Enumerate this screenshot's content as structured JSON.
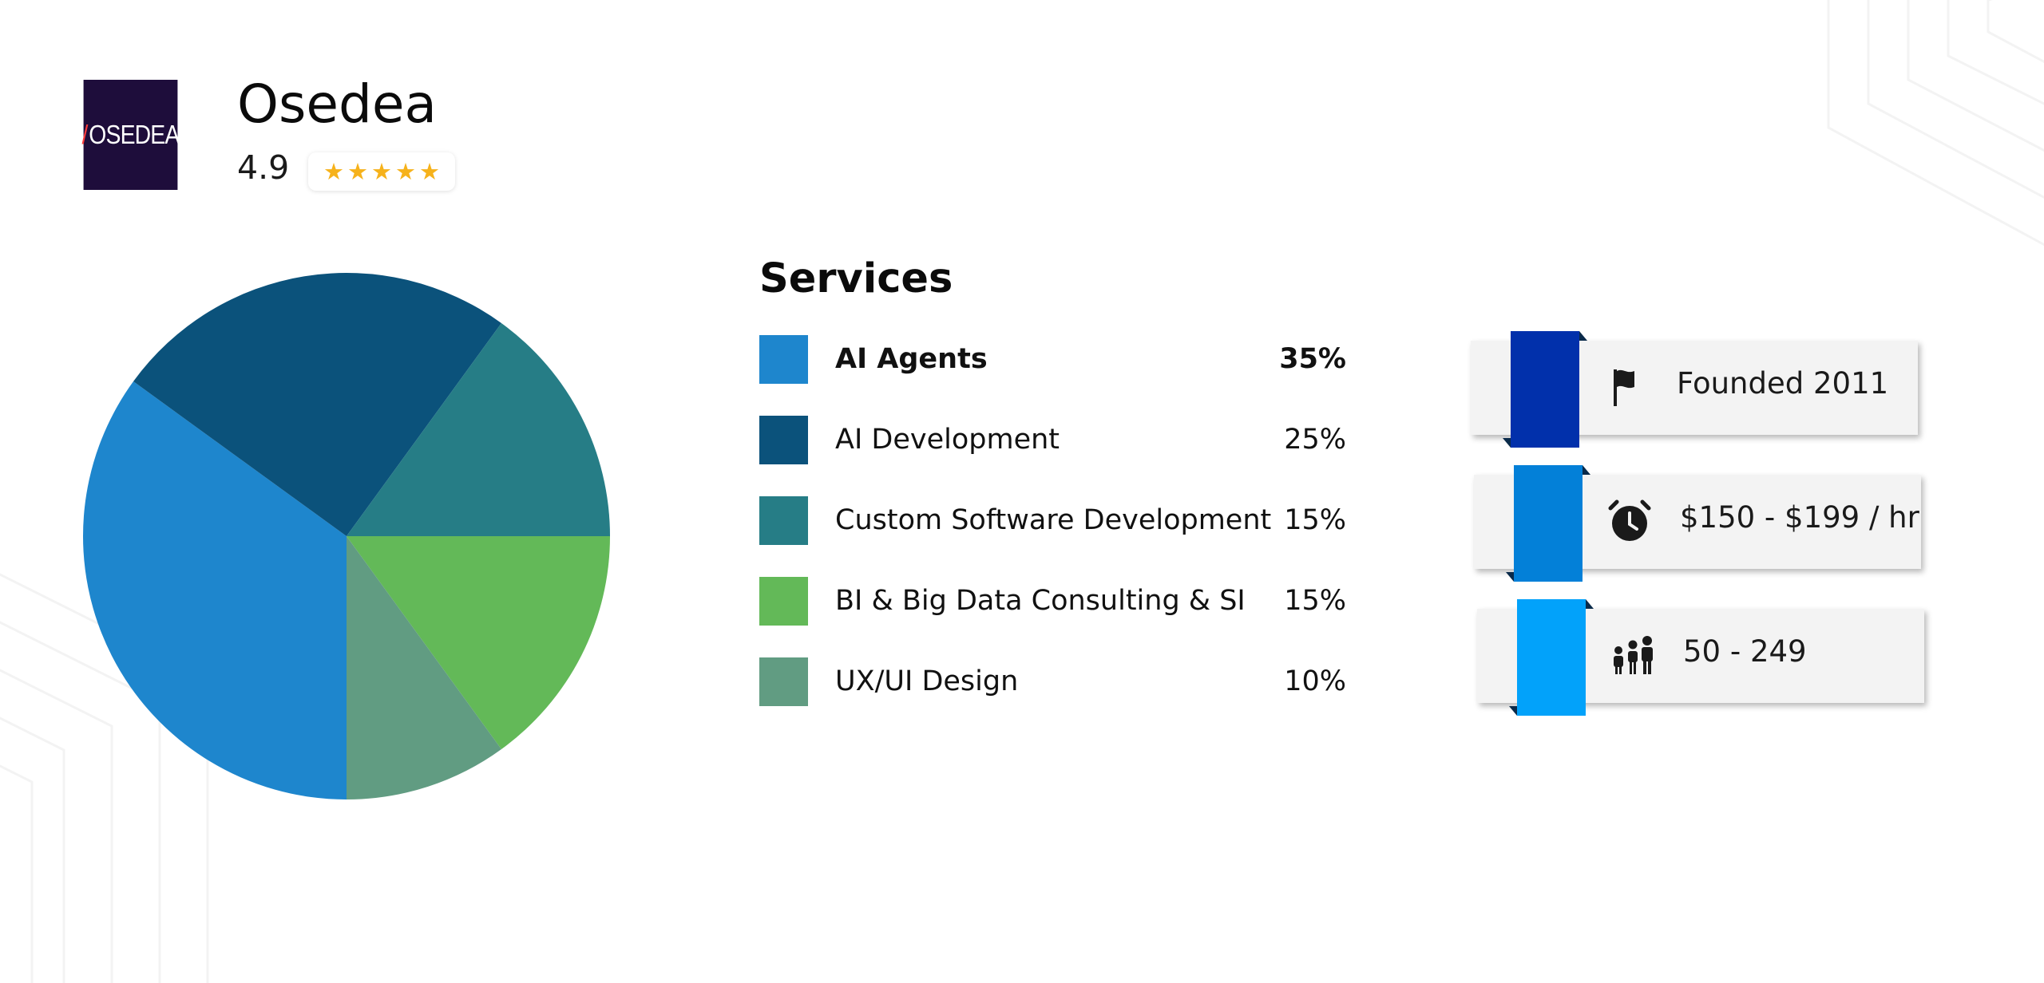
{
  "company": {
    "logo_text": "OSEDEA",
    "logo_slash": "/",
    "name": "Osedea",
    "rating": "4.9",
    "stars": 5
  },
  "services": {
    "title": "Services",
    "items": [
      {
        "label": "AI Agents",
        "percent": "35%",
        "color": "#1e86cd",
        "emphasized": true
      },
      {
        "label": "AI Development",
        "percent": "25%",
        "color": "#0b527b",
        "emphasized": false
      },
      {
        "label": "Custom Software Development",
        "percent": "15%",
        "color": "#267d86",
        "emphasized": false
      },
      {
        "label": "BI & Big Data Consulting & SI",
        "percent": "15%",
        "color": "#63b958",
        "emphasized": false
      },
      {
        "label": "UX/UI Design",
        "percent": "10%",
        "color": "#619c82",
        "emphasized": false
      }
    ]
  },
  "chart_data": {
    "type": "pie",
    "categories": [
      "AI Agents",
      "AI Development",
      "Custom Software Development",
      "BI & Big Data Consulting & SI",
      "UX/UI Design"
    ],
    "values": [
      35,
      25,
      15,
      15,
      10
    ],
    "colors": [
      "#1e86cd",
      "#0b527b",
      "#267d86",
      "#63b958",
      "#619c82"
    ],
    "title": "",
    "legend": "right"
  },
  "info_cards": [
    {
      "icon": "flag-icon",
      "text": "Founded 2011",
      "ribbon_color": "#0130ab"
    },
    {
      "icon": "alarm-clock-icon",
      "text": "$150 - $199 / hr",
      "ribbon_color": "#0380d8"
    },
    {
      "icon": "people-icon",
      "text": "50 - 249",
      "ribbon_color": "#02a2fa"
    }
  ]
}
